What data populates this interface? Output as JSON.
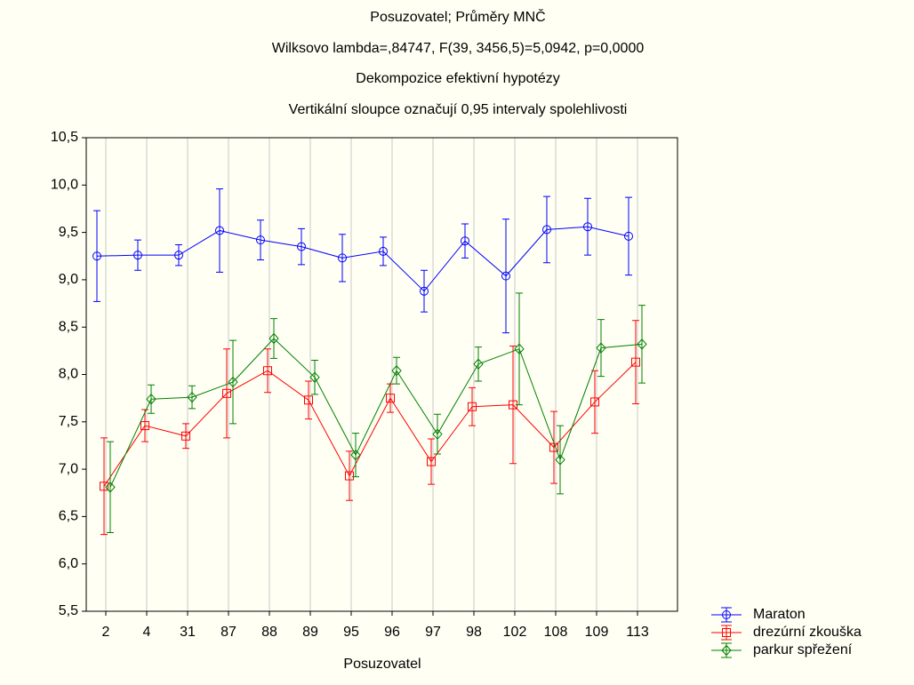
{
  "chart_data": {
    "type": "line_errorbar",
    "titles": [
      "Posuzovatel; Průměry MNČ",
      "Wilksovo lambda=,84747, F(39, 3456,5)=5,0942, p=0,0000",
      "Dekompozice efektivní hypotézy",
      "Vertikální sloupce označují 0,95 intervaly spolehlivosti"
    ],
    "x_label": "Posuzovatel",
    "categories": [
      "2",
      "4",
      "31",
      "87",
      "88",
      "89",
      "95",
      "96",
      "97",
      "98",
      "102",
      "108",
      "109",
      "113"
    ],
    "series": [
      {
        "name": "Maraton",
        "color": "#0000ff",
        "marker": "circle",
        "values": [
          9.25,
          9.26,
          9.26,
          9.52,
          9.42,
          9.35,
          9.23,
          9.3,
          8.88,
          9.41,
          9.04,
          9.53,
          9.56,
          9.46
        ],
        "errors": [
          0.48,
          0.16,
          0.11,
          0.44,
          0.21,
          0.19,
          0.25,
          0.15,
          0.22,
          0.18,
          0.6,
          0.35,
          0.3,
          0.41
        ]
      },
      {
        "name": "drezúrní zkouška",
        "color": "#ff0000",
        "marker": "square",
        "values": [
          6.82,
          7.46,
          7.35,
          7.8,
          8.04,
          7.73,
          6.93,
          7.75,
          7.08,
          7.66,
          7.68,
          7.23,
          7.71,
          8.13
        ],
        "errors": [
          0.51,
          0.17,
          0.13,
          0.47,
          0.23,
          0.2,
          0.26,
          0.15,
          0.24,
          0.2,
          0.62,
          0.38,
          0.33,
          0.44
        ]
      },
      {
        "name": "parkur spřežení",
        "color": "#008000",
        "marker": "diamond",
        "values": [
          6.81,
          7.74,
          7.76,
          7.92,
          8.38,
          7.97,
          7.15,
          8.04,
          7.37,
          8.11,
          8.27,
          7.1,
          8.28,
          8.32
        ],
        "errors": [
          0.48,
          0.15,
          0.12,
          0.44,
          0.21,
          0.18,
          0.23,
          0.14,
          0.21,
          0.18,
          0.59,
          0.36,
          0.3,
          0.41
        ]
      }
    ],
    "ylim": [
      5.5,
      10.5
    ],
    "yticks": [
      {
        "value": 5.5,
        "label": "5,5"
      },
      {
        "value": 6,
        "label": "6,0"
      },
      {
        "value": 6.5,
        "label": "6,5"
      },
      {
        "value": 7,
        "label": "7,0"
      },
      {
        "value": 7.5,
        "label": "7,5"
      },
      {
        "value": 8,
        "label": "8,0"
      },
      {
        "value": 8.5,
        "label": "8,5"
      },
      {
        "value": 9,
        "label": "9,0"
      },
      {
        "value": 9.5,
        "label": "9,5"
      },
      {
        "value": 10,
        "label": "10,0"
      },
      {
        "value": 10.5,
        "label": "10,5"
      }
    ],
    "x_grid": true
  }
}
